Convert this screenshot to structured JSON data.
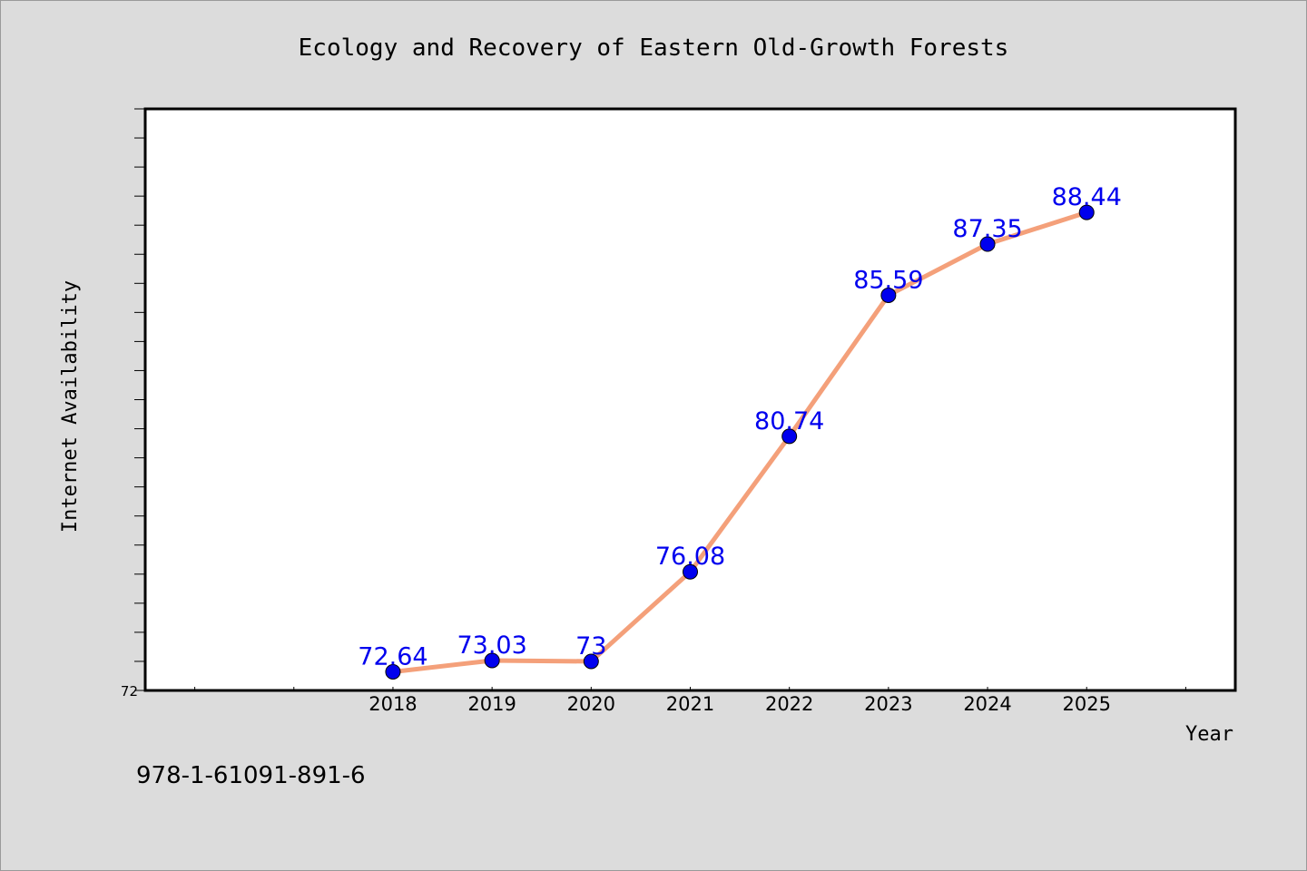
{
  "isbn": "978-1-61091-891-6",
  "colors": {
    "background": "#dcdcdc",
    "plot_bg": "#ffffff",
    "line": "#f4a07a",
    "marker": "#0000ee",
    "label": "#0000ee"
  },
  "chart_data": {
    "type": "line",
    "title": "Ecology and Recovery of Eastern Old-Growth Forests",
    "xlabel": "Year",
    "ylabel": "Internet Availability",
    "x": [
      "2018",
      "2019",
      "2020",
      "2021",
      "2022",
      "2023",
      "2024",
      "2025"
    ],
    "series": [
      {
        "values": [
          72.64,
          73.03,
          73,
          76.08,
          80.74,
          85.59,
          87.35,
          88.44
        ],
        "labels": [
          "72.64",
          "73.03",
          "73",
          "76.08",
          "80.74",
          "85.59",
          "87.35",
          "88.44"
        ]
      }
    ],
    "x_range": [
      2015.5,
      2026.5
    ],
    "ylim": [
      72,
      92
    ],
    "y_tick_labels": [
      "72"
    ],
    "grid": false,
    "legend": "none"
  }
}
